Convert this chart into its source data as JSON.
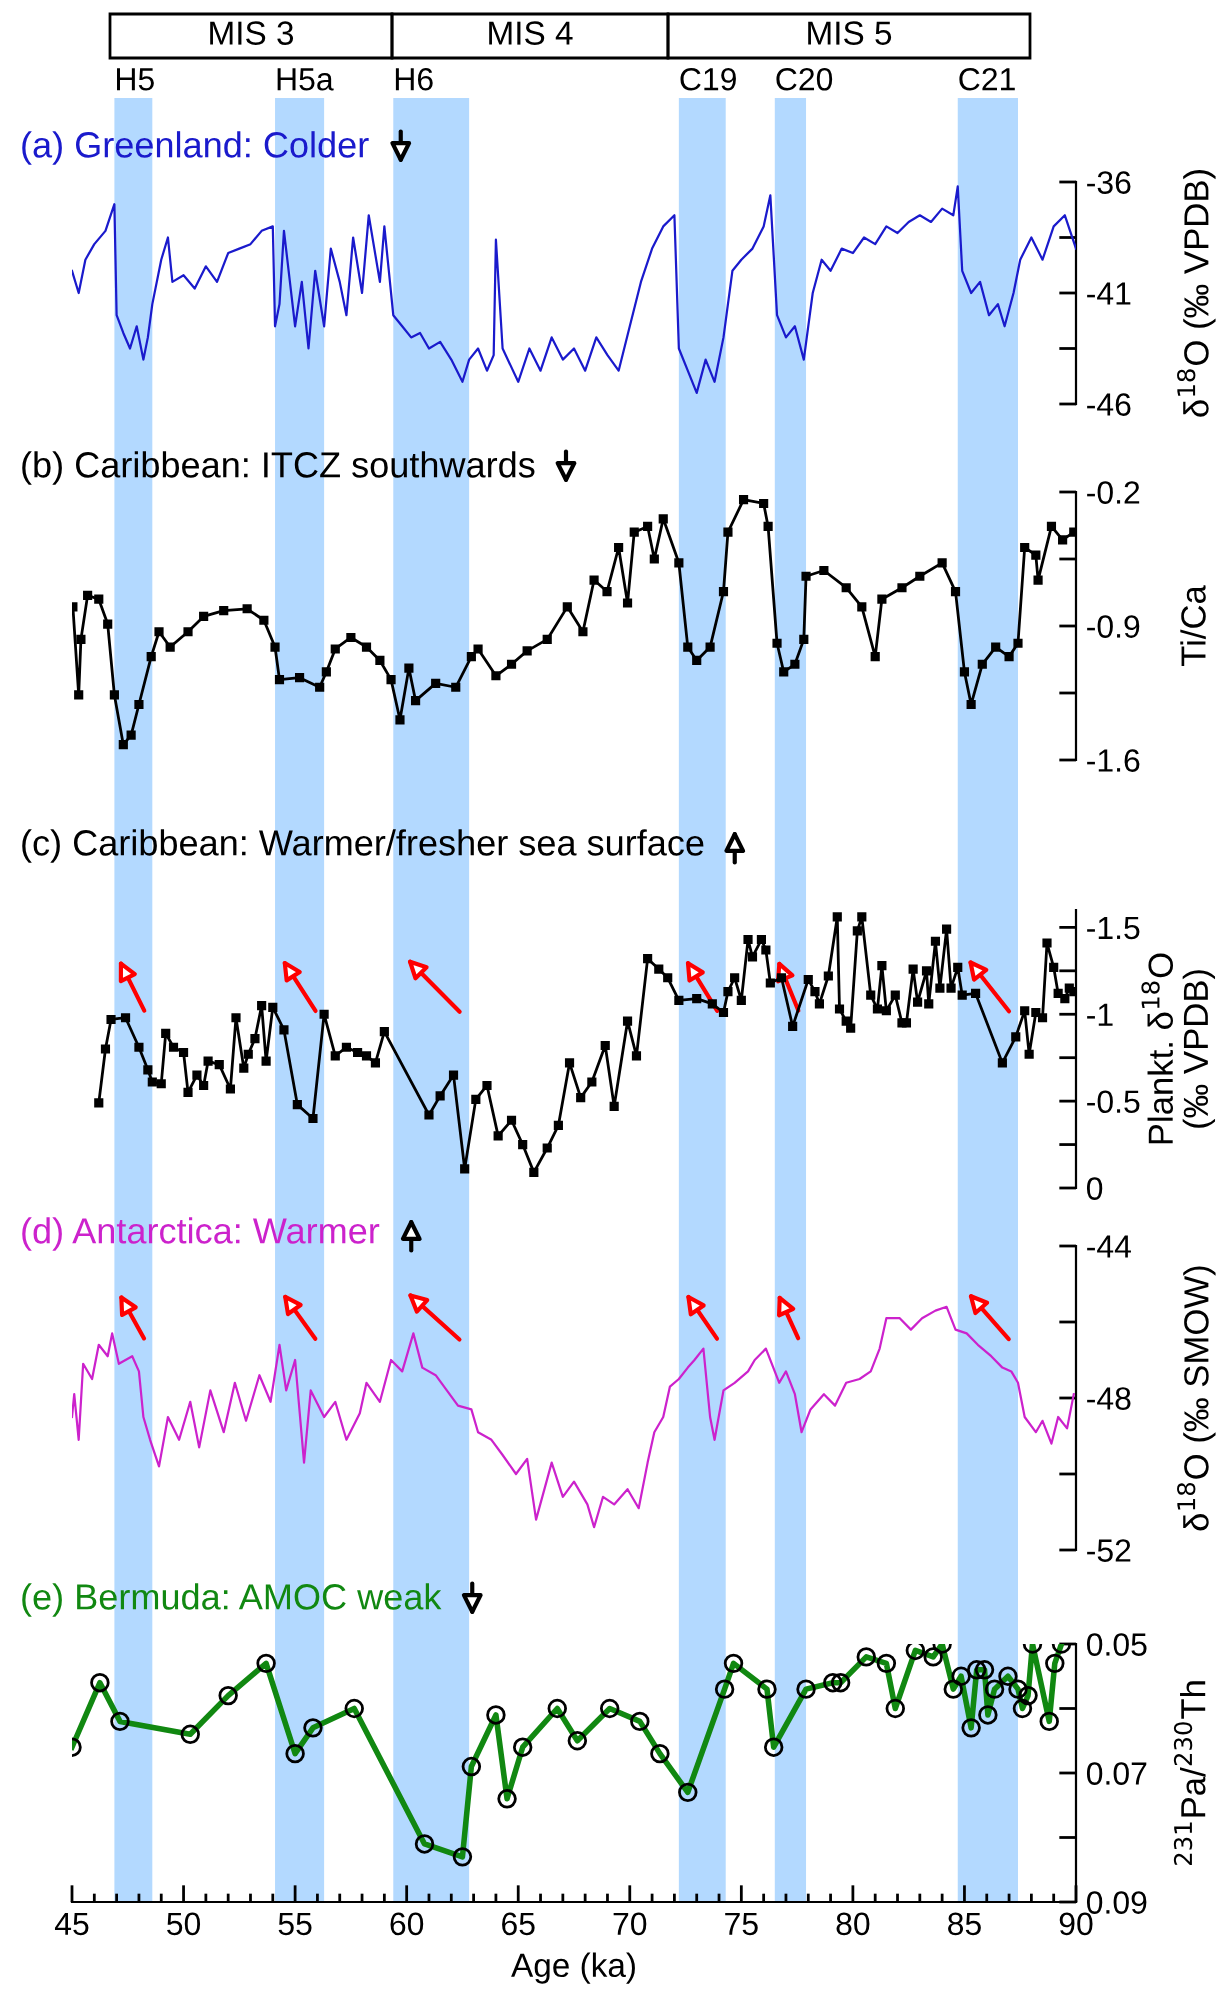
{
  "chart_data": [
    {
      "type": "line",
      "title": "(a) Greenland: Colder",
      "ylabel": "δ$^{18}$O (‰ VPDB)",
      "color": "#1a1acc",
      "marker": "none",
      "tick_labels": "y",
      "xlim": [
        45,
        90
      ],
      "ylim": [
        -46,
        -36
      ],
      "yticks": [
        -36,
        {
          "value": -38.5,
          "label": null
        },
        -41,
        {
          "value": -43.5,
          "label": null
        },
        -46
      ],
      "bands": [
        {
          "axis": "x",
          "from": 46.9,
          "to": 48.6,
          "label": "H5",
          "color": "#b3d9ff"
        },
        {
          "axis": "x",
          "from": 54.1,
          "to": 56.3,
          "label": "H5a",
          "color": "#b3d9ff"
        },
        {
          "axis": "x",
          "from": 59.4,
          "to": 62.8,
          "label": "H6",
          "color": "#b3d9ff"
        },
        {
          "axis": "x",
          "from": 72.2,
          "to": 74.3,
          "label": "C19",
          "color": "#b3d9ff"
        },
        {
          "axis": "x",
          "from": 76.5,
          "to": 77.9,
          "label": "C20",
          "color": "#b3d9ff"
        },
        {
          "axis": "x",
          "from": 84.7,
          "to": 87.4,
          "label": "C21",
          "color": "#b3d9ff"
        }
      ],
      "annotations": [
        "MIS 3",
        "MIS 4",
        "MIS 5"
      ],
      "x": [
        45.0,
        45.3,
        45.6,
        46.0,
        46.5,
        46.9,
        47.0,
        47.3,
        47.6,
        47.9,
        48.2,
        48.4,
        48.6,
        49.0,
        49.3,
        49.5,
        50.0,
        50.5,
        51.0,
        51.5,
        52.0,
        52.5,
        53.0,
        53.5,
        54.0,
        54.1,
        54.3,
        54.5,
        55.0,
        55.3,
        55.6,
        55.9,
        56.3,
        56.6,
        57.0,
        57.3,
        57.6,
        58.0,
        58.3,
        58.8,
        59.0,
        59.4,
        59.8,
        60.2,
        60.6,
        61.0,
        61.5,
        62.0,
        62.5,
        62.8,
        63.2,
        63.6,
        63.9,
        64.0,
        64.3,
        65.0,
        65.5,
        66.0,
        66.5,
        67.0,
        67.5,
        68.0,
        68.5,
        69.0,
        69.5,
        70.0,
        70.5,
        71.0,
        71.5,
        72.0,
        72.2,
        72.6,
        73.0,
        73.4,
        73.8,
        74.2,
        74.6,
        75.0,
        75.5,
        76.0,
        76.3,
        76.6,
        77.0,
        77.4,
        77.8,
        78.2,
        78.6,
        79.0,
        79.5,
        80.0,
        80.5,
        81.0,
        81.5,
        82.0,
        82.5,
        83.0,
        83.5,
        84.0,
        84.5,
        84.7,
        84.9,
        85.3,
        85.7,
        86.1,
        86.5,
        86.8,
        87.2,
        87.5,
        88.0,
        88.5,
        89.0,
        89.5,
        90.0
      ],
      "values": [
        -40.0,
        -41.0,
        -39.5,
        -38.8,
        -38.2,
        -37.0,
        -42.0,
        -42.8,
        -43.5,
        -42.5,
        -44.0,
        -43.0,
        -41.5,
        -39.5,
        -38.5,
        -40.5,
        -40.2,
        -40.8,
        -39.8,
        -40.5,
        -39.2,
        -39.0,
        -38.8,
        -38.2,
        -38.0,
        -42.5,
        -41.5,
        -38.2,
        -42.5,
        -40.5,
        -43.5,
        -40.0,
        -42.5,
        -39.0,
        -40.5,
        -42.0,
        -38.5,
        -41.0,
        -37.5,
        -40.5,
        -38.0,
        -42.0,
        -42.5,
        -43.0,
        -42.8,
        -43.5,
        -43.2,
        -44.0,
        -45.0,
        -44.0,
        -43.5,
        -44.5,
        -43.8,
        -38.6,
        -43.5,
        -45.0,
        -43.5,
        -44.5,
        -43.0,
        -44.0,
        -43.5,
        -44.5,
        -43.0,
        -43.8,
        -44.5,
        -42.5,
        -40.5,
        -39.0,
        -38.0,
        -37.5,
        -43.5,
        -44.5,
        -45.5,
        -44.0,
        -45.0,
        -43.0,
        -40.0,
        -39.5,
        -39.0,
        -38.0,
        -36.6,
        -42.0,
        -43.0,
        -42.5,
        -44.0,
        -41.0,
        -39.5,
        -40.0,
        -39.0,
        -39.2,
        -38.5,
        -38.8,
        -38.0,
        -38.3,
        -37.8,
        -37.5,
        -37.8,
        -37.2,
        -37.5,
        -36.2,
        -40.0,
        -41.0,
        -40.5,
        -42.0,
        -41.5,
        -42.5,
        -41.0,
        -39.5,
        -38.5,
        -39.5,
        -38.0,
        -37.5,
        -39.0
      ]
    },
    {
      "type": "line",
      "title": "(b) Caribbean: ITCZ southwards",
      "ylabel": "Ti/Ca",
      "color": "#000000",
      "marker": "square",
      "tick_labels": "y",
      "xlim": [
        45,
        90
      ],
      "ylim": [
        -1.6,
        -0.2
      ],
      "yticks": [
        -0.2,
        {
          "value": -0.55,
          "label": null
        },
        -0.9,
        {
          "value": -1.25,
          "label": null
        },
        -1.6
      ],
      "bands": [
        {
          "axis": "x",
          "from": 46.9,
          "to": 48.6,
          "color": "#b3d9ff"
        },
        {
          "axis": "x",
          "from": 54.1,
          "to": 56.3,
          "color": "#b3d9ff"
        },
        {
          "axis": "x",
          "from": 59.4,
          "to": 62.8,
          "color": "#b3d9ff"
        },
        {
          "axis": "x",
          "from": 72.2,
          "to": 74.3,
          "color": "#b3d9ff"
        },
        {
          "axis": "x",
          "from": 76.5,
          "to": 77.9,
          "color": "#b3d9ff"
        },
        {
          "axis": "x",
          "from": 84.7,
          "to": 87.4,
          "color": "#b3d9ff"
        }
      ],
      "x": [
        45.04,
        45.3,
        45.4,
        45.7,
        46.2,
        46.6,
        46.9,
        47.3,
        47.65,
        48.0,
        48.55,
        48.9,
        49.4,
        50.2,
        50.9,
        51.8,
        52.85,
        53.6,
        54.1,
        54.3,
        55.2,
        56.1,
        56.4,
        56.8,
        57.5,
        58.2,
        58.8,
        59.3,
        59.7,
        60.1,
        60.4,
        61.3,
        62.2,
        62.9,
        63.2,
        64.0,
        64.7,
        65.4,
        66.3,
        67.2,
        67.9,
        68.4,
        68.98,
        69.5,
        69.9,
        70.2,
        70.8,
        71.1,
        71.5,
        72.2,
        72.6,
        73.0,
        73.6,
        74.2,
        74.4,
        75.1,
        76.0,
        76.2,
        76.6,
        76.9,
        77.4,
        77.8,
        77.9,
        78.7,
        79.7,
        80.4,
        81.0,
        81.3,
        82.2,
        83.0,
        84.0,
        84.6,
        85.0,
        85.3,
        85.8,
        86.4,
        87.0,
        87.4,
        87.7,
        88.2,
        88.3,
        88.9,
        89.4,
        89.9
      ],
      "values": [
        -0.8,
        -1.26,
        -0.97,
        -0.74,
        -0.76,
        -0.89,
        -1.26,
        -1.52,
        -1.47,
        -1.31,
        -1.06,
        -0.93,
        -1.01,
        -0.93,
        -0.85,
        -0.82,
        -0.81,
        -0.87,
        -1.01,
        -1.18,
        -1.17,
        -1.22,
        -1.14,
        -1.02,
        -0.96,
        -1.01,
        -1.08,
        -1.18,
        -1.39,
        -1.12,
        -1.29,
        -1.2,
        -1.22,
        -1.06,
        -1.02,
        -1.16,
        -1.1,
        -1.03,
        -0.97,
        -0.8,
        -0.93,
        -0.66,
        -0.72,
        -0.49,
        -0.78,
        -0.41,
        -0.38,
        -0.55,
        -0.34,
        -0.57,
        -1.01,
        -1.08,
        -1.01,
        -0.72,
        -0.41,
        -0.24,
        -0.26,
        -0.38,
        -0.99,
        -1.14,
        -1.1,
        -0.97,
        -0.64,
        -0.61,
        -0.7,
        -0.8,
        -1.06,
        -0.76,
        -0.7,
        -0.64,
        -0.57,
        -0.72,
        -1.14,
        -1.31,
        -1.1,
        -1.01,
        -1.06,
        -0.99,
        -0.49,
        -0.53,
        -0.66,
        -0.38,
        -0.45,
        -0.41
      ]
    },
    {
      "type": "line",
      "title": "(c) Caribbean: Warmer/fresher sea surface",
      "ylabel": "Plankt. δ$^{18}$O\n(‰ VPDB)",
      "color": "#000000",
      "marker": "square",
      "tick_labels": "y",
      "xlim": [
        45,
        90
      ],
      "ylim": [
        0,
        -1.6
      ],
      "yticks": [
        -1.5,
        {
          "value": -1.25,
          "label": null
        },
        -1,
        {
          "value": -0.75,
          "label": null
        },
        -0.5,
        {
          "value": -0.25,
          "label": null
        },
        0
      ],
      "bands": [
        {
          "axis": "x",
          "from": 46.9,
          "to": 48.6,
          "color": "#b3d9ff"
        },
        {
          "axis": "x",
          "from": 54.1,
          "to": 56.3,
          "color": "#b3d9ff"
        },
        {
          "axis": "x",
          "from": 59.4,
          "to": 62.8,
          "color": "#b3d9ff"
        },
        {
          "axis": "x",
          "from": 72.2,
          "to": 74.3,
          "color": "#b3d9ff"
        },
        {
          "axis": "x",
          "from": 76.5,
          "to": 77.9,
          "color": "#b3d9ff"
        },
        {
          "axis": "x",
          "from": 84.7,
          "to": 87.4,
          "color": "#b3d9ff"
        }
      ],
      "x": [
        46.2,
        46.5,
        46.75,
        47.4,
        48.0,
        48.4,
        48.6,
        49.0,
        49.2,
        49.55,
        50.0,
        50.2,
        50.6,
        50.9,
        51.1,
        51.6,
        52.1,
        52.35,
        52.7,
        52.9,
        53.2,
        53.5,
        53.7,
        54.0,
        54.5,
        55.1,
        55.8,
        56.3,
        56.8,
        57.3,
        57.8,
        58.2,
        58.6,
        59.0,
        61.0,
        61.5,
        62.1,
        62.6,
        63.1,
        63.6,
        64.1,
        64.7,
        65.2,
        65.7,
        66.3,
        66.8,
        67.3,
        67.8,
        68.3,
        68.9,
        69.3,
        69.9,
        70.3,
        70.8,
        71.3,
        71.7,
        72.2,
        73.0,
        73.7,
        74.2,
        74.4,
        74.7,
        75.0,
        75.3,
        75.5,
        75.9,
        76.1,
        76.3,
        76.8,
        77.3,
        78.0,
        78.3,
        78.5,
        78.9,
        79.3,
        79.4,
        79.7,
        79.9,
        80.2,
        80.4,
        80.8,
        81.1,
        81.3,
        81.5,
        81.9,
        82.2,
        82.4,
        82.7,
        82.9,
        83.3,
        83.4,
        83.7,
        83.9,
        84.2,
        84.4,
        84.7,
        84.9,
        85.5,
        86.7,
        87.3,
        87.7,
        87.9,
        88.2,
        88.5,
        88.7,
        89.0,
        89.2,
        89.5,
        89.7,
        89.9
      ],
      "values": [
        -0.49,
        -0.8,
        -0.97,
        -0.98,
        -0.81,
        -0.68,
        -0.61,
        -0.6,
        -0.89,
        -0.81,
        -0.78,
        -0.55,
        -0.65,
        -0.59,
        -0.73,
        -0.71,
        -0.57,
        -0.98,
        -0.69,
        -0.77,
        -0.86,
        -1.05,
        -0.73,
        -1.04,
        -0.91,
        -0.48,
        -0.4,
        -1.0,
        -0.76,
        -0.81,
        -0.78,
        -0.76,
        -0.72,
        -0.9,
        -0.42,
        -0.53,
        -0.65,
        -0.11,
        -0.51,
        -0.59,
        -0.3,
        -0.39,
        -0.25,
        -0.09,
        -0.23,
        -0.36,
        -0.72,
        -0.52,
        -0.61,
        -0.82,
        -0.47,
        -0.96,
        -0.76,
        -1.32,
        -1.26,
        -1.21,
        -1.08,
        -1.09,
        -1.06,
        -1.01,
        -1.13,
        -1.21,
        -1.08,
        -1.43,
        -1.33,
        -1.43,
        -1.37,
        -1.18,
        -1.21,
        -0.93,
        -1.2,
        -1.13,
        -1.06,
        -1.22,
        -1.56,
        -1.03,
        -0.96,
        -0.92,
        -1.48,
        -1.56,
        -1.11,
        -1.03,
        -1.28,
        -1.02,
        -1.11,
        -0.95,
        -0.95,
        -1.26,
        -1.07,
        -1.25,
        -1.06,
        -1.42,
        -1.15,
        -1.49,
        -1.15,
        -1.27,
        -1.11,
        -1.12,
        -0.72,
        -0.87,
        -1.02,
        -0.77,
        -1.01,
        -0.98,
        -1.41,
        -1.27,
        -1.12,
        -1.09,
        -1.15,
        -1.13
      ]
    },
    {
      "type": "line",
      "title": "(d) Antarctica: Warmer",
      "ylabel": "δ$^{18}$O (‰ SMOW)",
      "color": "#cc22cc",
      "marker": "none",
      "tick_labels": "y",
      "xlim": [
        45,
        90
      ],
      "ylim": [
        -52,
        -44
      ],
      "yticks": [
        -44,
        {
          "value": -46,
          "label": null
        },
        -48,
        {
          "value": -50,
          "label": null
        },
        -52
      ],
      "bands": [
        {
          "axis": "x",
          "from": 46.9,
          "to": 48.6,
          "color": "#b3d9ff"
        },
        {
          "axis": "x",
          "from": 54.1,
          "to": 56.3,
          "color": "#b3d9ff"
        },
        {
          "axis": "x",
          "from": 59.4,
          "to": 62.8,
          "color": "#b3d9ff"
        },
        {
          "axis": "x",
          "from": 72.2,
          "to": 74.3,
          "color": "#b3d9ff"
        },
        {
          "axis": "x",
          "from": 76.5,
          "to": 77.9,
          "color": "#b3d9ff"
        },
        {
          "axis": "x",
          "from": 84.7,
          "to": 87.4,
          "color": "#b3d9ff"
        }
      ],
      "x": [
        45.0,
        45.1,
        45.3,
        45.5,
        45.9,
        46.2,
        46.6,
        46.8,
        47.1,
        47.7,
        48.0,
        48.2,
        48.5,
        48.9,
        49.3,
        49.8,
        50.3,
        50.7,
        51.2,
        51.8,
        52.3,
        52.8,
        53.4,
        53.9,
        54.3,
        54.6,
        55.0,
        55.4,
        55.7,
        56.3,
        56.8,
        57.3,
        57.9,
        58.2,
        58.8,
        59.3,
        59.8,
        60.3,
        60.7,
        61.3,
        61.8,
        62.3,
        62.9,
        63.2,
        63.8,
        64.3,
        64.9,
        65.4,
        65.8,
        66.5,
        67.0,
        67.5,
        68.1,
        68.4,
        68.8,
        69.3,
        69.9,
        70.4,
        70.8,
        71.1,
        71.5,
        71.8,
        72.2,
        72.6,
        72.9,
        73.3,
        73.6,
        73.8,
        74.2,
        74.7,
        75.3,
        75.6,
        76.1,
        76.7,
        77.0,
        77.4,
        77.7,
        78.1,
        78.7,
        79.2,
        79.7,
        80.3,
        80.8,
        81.2,
        81.5,
        82.1,
        82.6,
        83.1,
        83.7,
        84.2,
        84.6,
        85.1,
        85.6,
        86.2,
        86.7,
        87.1,
        87.4,
        87.7,
        88.2,
        88.5,
        88.9,
        89.2,
        89.6,
        89.9
      ],
      "values": [
        -48.5,
        -47.9,
        -49.1,
        -47.1,
        -47.5,
        -46.6,
        -46.9,
        -46.3,
        -47.1,
        -46.9,
        -47.3,
        -48.5,
        -49.1,
        -49.8,
        -48.5,
        -49.1,
        -48.1,
        -49.3,
        -47.8,
        -48.9,
        -47.6,
        -48.6,
        -47.4,
        -48.1,
        -46.6,
        -47.8,
        -47.0,
        -49.7,
        -47.8,
        -48.5,
        -48.1,
        -49.1,
        -48.4,
        -47.6,
        -48.1,
        -47.0,
        -47.3,
        -46.3,
        -47.2,
        -47.4,
        -47.8,
        -48.2,
        -48.3,
        -48.9,
        -49.1,
        -49.5,
        -50.0,
        -49.6,
        -51.2,
        -49.7,
        -50.6,
        -50.2,
        -50.8,
        -51.4,
        -50.6,
        -50.8,
        -50.4,
        -50.9,
        -49.7,
        -48.9,
        -48.5,
        -47.7,
        -47.5,
        -47.2,
        -47.0,
        -46.7,
        -48.5,
        -49.1,
        -47.8,
        -47.6,
        -47.3,
        -47.0,
        -46.7,
        -47.6,
        -47.3,
        -47.9,
        -48.9,
        -48.3,
        -47.9,
        -48.2,
        -47.6,
        -47.5,
        -47.3,
        -46.7,
        -45.9,
        -45.9,
        -46.2,
        -45.9,
        -45.7,
        -45.6,
        -46.2,
        -46.3,
        -46.6,
        -46.9,
        -47.2,
        -47.3,
        -47.6,
        -48.5,
        -48.9,
        -48.6,
        -49.2,
        -48.5,
        -48.8,
        -47.9
      ]
    },
    {
      "type": "line",
      "title": "(e) Bermuda: AMOC weak",
      "ylabel": "$^{231}$Pa/$^{230}$Th",
      "xlabel": "Age (ka)",
      "color": "#118811",
      "marker": "circle",
      "xlim": [
        45,
        90
      ],
      "ylim": [
        0.09,
        0.05
      ],
      "yticks": [
        0.05,
        {
          "value": 0.06,
          "label": null
        },
        0.07,
        {
          "value": 0.08,
          "label": null
        },
        0.09
      ],
      "xticks": [
        45,
        {
          "value": 46,
          "label": null
        },
        {
          "value": 47,
          "label": null
        },
        {
          "value": 48,
          "label": null
        },
        {
          "value": 49,
          "label": null
        },
        50,
        {
          "value": 51,
          "label": null
        },
        {
          "value": 52,
          "label": null
        },
        {
          "value": 53,
          "label": null
        },
        {
          "value": 54,
          "label": null
        },
        55,
        {
          "value": 56,
          "label": null
        },
        {
          "value": 57,
          "label": null
        },
        {
          "value": 58,
          "label": null
        },
        {
          "value": 59,
          "label": null
        },
        60,
        {
          "value": 61,
          "label": null
        },
        {
          "value": 62,
          "label": null
        },
        {
          "value": 63,
          "label": null
        },
        {
          "value": 64,
          "label": null
        },
        65,
        {
          "value": 66,
          "label": null
        },
        {
          "value": 67,
          "label": null
        },
        {
          "value": 68,
          "label": null
        },
        {
          "value": 69,
          "label": null
        },
        70,
        {
          "value": 71,
          "label": null
        },
        {
          "value": 72,
          "label": null
        },
        {
          "value": 73,
          "label": null
        },
        {
          "value": 74,
          "label": null
        },
        75,
        {
          "value": 76,
          "label": null
        },
        {
          "value": 77,
          "label": null
        },
        {
          "value": 78,
          "label": null
        },
        {
          "value": 79,
          "label": null
        },
        80,
        {
          "value": 81,
          "label": null
        },
        {
          "value": 82,
          "label": null
        },
        {
          "value": 83,
          "label": null
        },
        {
          "value": 84,
          "label": null
        },
        85,
        {
          "value": 86,
          "label": null
        },
        {
          "value": 87,
          "label": null
        },
        {
          "value": 88,
          "label": null
        },
        {
          "value": 89,
          "label": null
        },
        90
      ],
      "bands": [
        {
          "axis": "x",
          "from": 46.9,
          "to": 48.6,
          "color": "#b3d9ff"
        },
        {
          "axis": "x",
          "from": 54.1,
          "to": 56.3,
          "color": "#b3d9ff"
        },
        {
          "axis": "x",
          "from": 59.4,
          "to": 62.8,
          "color": "#b3d9ff"
        },
        {
          "axis": "x",
          "from": 72.2,
          "to": 74.3,
          "color": "#b3d9ff"
        },
        {
          "axis": "x",
          "from": 76.5,
          "to": 77.9,
          "color": "#b3d9ff"
        },
        {
          "axis": "x",
          "from": 84.7,
          "to": 87.4,
          "color": "#b3d9ff"
        }
      ],
      "x": [
        45.0,
        46.25,
        47.15,
        50.3,
        52.0,
        53.7,
        55.0,
        55.8,
        57.65,
        60.8,
        62.5,
        62.9,
        64.0,
        64.5,
        65.2,
        66.75,
        67.65,
        69.1,
        70.45,
        71.35,
        72.6,
        74.25,
        74.65,
        76.15,
        76.45,
        77.9,
        79.1,
        79.45,
        80.6,
        81.5,
        81.9,
        82.8,
        83.6,
        84.0,
        84.5,
        84.85,
        85.3,
        85.55,
        85.9,
        86.05,
        86.35,
        86.95,
        87.4,
        87.6,
        87.85,
        88.05,
        88.8,
        89.05,
        89.35
      ],
      "values": [
        0.066,
        0.056,
        0.062,
        0.064,
        0.058,
        0.053,
        0.067,
        0.063,
        0.06,
        0.081,
        0.083,
        0.069,
        0.061,
        0.074,
        0.066,
        0.06,
        0.065,
        0.06,
        0.062,
        0.067,
        0.073,
        0.057,
        0.053,
        0.057,
        0.066,
        0.057,
        0.056,
        0.056,
        0.052,
        0.053,
        0.06,
        0.051,
        0.052,
        0.05,
        0.057,
        0.055,
        0.063,
        0.054,
        0.054,
        0.061,
        0.057,
        0.055,
        0.057,
        0.06,
        0.058,
        0.05,
        0.062,
        0.053,
        0.05
      ]
    }
  ]
}
